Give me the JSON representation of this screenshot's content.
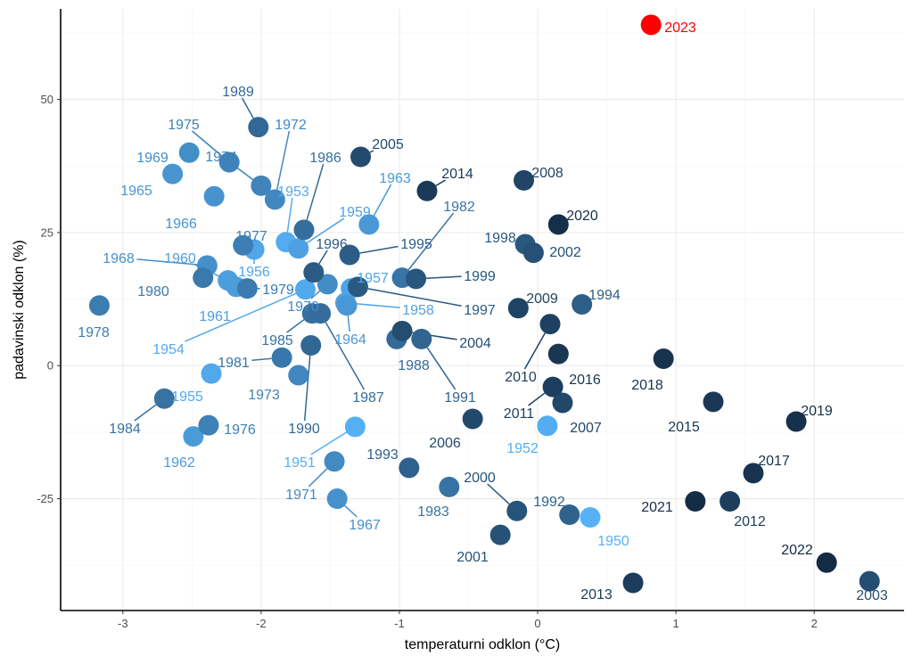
{
  "chart_data": {
    "type": "scatter",
    "xlabel": "temperaturni odklon (°C)",
    "ylabel": "padavinski odklon (%)",
    "xlim": [
      -3.45,
      2.65
    ],
    "ylim": [
      -46,
      67
    ],
    "x_ticks": [
      -3,
      -2,
      -1,
      0,
      1,
      2
    ],
    "x_tick_labels": [
      "-3",
      "-2",
      "-1",
      "0",
      "1",
      "2"
    ],
    "y_ticks": [
      -25,
      0,
      25,
      50
    ],
    "y_tick_labels": [
      "-25",
      "0",
      "25",
      "50"
    ],
    "grid": true,
    "legend": "none",
    "color_scale": {
      "low": "#56b1f7",
      "high": "#132b43",
      "from_year": 1950,
      "to_year": 2022
    },
    "highlight": {
      "year": "2023",
      "color": "#ff0000"
    },
    "points": [
      {
        "year": "1950",
        "x": 0.38,
        "y": -28.5
      },
      {
        "year": "1951",
        "x": -1.32,
        "y": -11.5
      },
      {
        "year": "1952",
        "x": 0.07,
        "y": -11.3
      },
      {
        "year": "1953",
        "x": -1.82,
        "y": 23.2
      },
      {
        "year": "1954",
        "x": -1.68,
        "y": 14.3
      },
      {
        "year": "1955",
        "x": -2.36,
        "y": -1.5
      },
      {
        "year": "1956",
        "x": -2.05,
        "y": 21.8
      },
      {
        "year": "1957",
        "x": -1.35,
        "y": 14.5
      },
      {
        "year": "1958",
        "x": -1.39,
        "y": 11.8
      },
      {
        "year": "1959",
        "x": -1.73,
        "y": 22.0
      },
      {
        "year": "1960",
        "x": -2.24,
        "y": 16.0
      },
      {
        "year": "1961",
        "x": -2.18,
        "y": 14.8
      },
      {
        "year": "1962",
        "x": -2.49,
        "y": -13.3
      },
      {
        "year": "1963",
        "x": -1.22,
        "y": 26.5
      },
      {
        "year": "1964",
        "x": -1.38,
        "y": 11.3
      },
      {
        "year": "1965",
        "x": -2.64,
        "y": 36.0
      },
      {
        "year": "1966",
        "x": -2.34,
        "y": 31.8
      },
      {
        "year": "1967",
        "x": -1.45,
        "y": -25.0
      },
      {
        "year": "1968",
        "x": -2.39,
        "y": 18.8
      },
      {
        "year": "1969",
        "x": -2.52,
        "y": 40.0
      },
      {
        "year": "1970",
        "x": -1.52,
        "y": 15.3
      },
      {
        "year": "1971",
        "x": -1.47,
        "y": -18.0
      },
      {
        "year": "1972",
        "x": -1.9,
        "y": 31.2
      },
      {
        "year": "1973",
        "x": -1.73,
        "y": -1.8
      },
      {
        "year": "1974",
        "x": -2.0,
        "y": 33.8
      },
      {
        "year": "1975",
        "x": -2.23,
        "y": 38.2
      },
      {
        "year": "1976",
        "x": -2.38,
        "y": -11.2
      },
      {
        "year": "1977",
        "x": -2.13,
        "y": 22.6
      },
      {
        "year": "1978",
        "x": -3.17,
        "y": 11.3
      },
      {
        "year": "1979",
        "x": -2.1,
        "y": 14.5
      },
      {
        "year": "1980",
        "x": -2.42,
        "y": 16.5
      },
      {
        "year": "1981",
        "x": -1.85,
        "y": 1.5
      },
      {
        "year": "1982",
        "x": -0.98,
        "y": 16.5
      },
      {
        "year": "1983",
        "x": -0.64,
        "y": -22.8
      },
      {
        "year": "1984",
        "x": -2.7,
        "y": -6.2
      },
      {
        "year": "1985",
        "x": -1.63,
        "y": 9.8
      },
      {
        "year": "1986",
        "x": -1.69,
        "y": 25.5
      },
      {
        "year": "1987",
        "x": -1.57,
        "y": 9.8
      },
      {
        "year": "1988",
        "x": -1.02,
        "y": 5.0
      },
      {
        "year": "1989",
        "x": -2.02,
        "y": 44.8
      },
      {
        "year": "1990",
        "x": -1.64,
        "y": 3.8
      },
      {
        "year": "1991",
        "x": -0.84,
        "y": 5.0
      },
      {
        "year": "1992",
        "x": 0.23,
        "y": -28.0
      },
      {
        "year": "1993",
        "x": -0.93,
        "y": -19.2
      },
      {
        "year": "1994",
        "x": 0.32,
        "y": 11.5
      },
      {
        "year": "1995",
        "x": -1.36,
        "y": 20.8
      },
      {
        "year": "1996",
        "x": -1.62,
        "y": 17.5
      },
      {
        "year": "1997",
        "x": -1.3,
        "y": 14.8
      },
      {
        "year": "1998",
        "x": -0.09,
        "y": 22.8
      },
      {
        "year": "1999",
        "x": -0.88,
        "y": 16.3
      },
      {
        "year": "2000",
        "x": -0.15,
        "y": -27.3
      },
      {
        "year": "2001",
        "x": -0.27,
        "y": -31.8
      },
      {
        "year": "2002",
        "x": -0.03,
        "y": 21.2
      },
      {
        "year": "2003",
        "x": 2.4,
        "y": -40.5
      },
      {
        "year": "2004",
        "x": -0.98,
        "y": 6.5
      },
      {
        "year": "2005",
        "x": -1.28,
        "y": 39.2
      },
      {
        "year": "2006",
        "x": -0.47,
        "y": -10.0
      },
      {
        "year": "2007",
        "x": 0.18,
        "y": -7.0
      },
      {
        "year": "2008",
        "x": -0.1,
        "y": 34.8
      },
      {
        "year": "2009",
        "x": -0.14,
        "y": 10.8
      },
      {
        "year": "2010",
        "x": 0.09,
        "y": 7.8
      },
      {
        "year": "2011",
        "x": 0.11,
        "y": -4.0
      },
      {
        "year": "2012",
        "x": 1.39,
        "y": -25.5
      },
      {
        "year": "2013",
        "x": 0.69,
        "y": -40.8
      },
      {
        "year": "2014",
        "x": -0.8,
        "y": 32.8
      },
      {
        "year": "2015",
        "x": 1.27,
        "y": -6.8
      },
      {
        "year": "2016",
        "x": 0.15,
        "y": 2.2
      },
      {
        "year": "2017",
        "x": 1.56,
        "y": -20.2
      },
      {
        "year": "2018",
        "x": 0.91,
        "y": 1.3
      },
      {
        "year": "2019",
        "x": 1.87,
        "y": -10.5
      },
      {
        "year": "2020",
        "x": 0.15,
        "y": 26.5
      },
      {
        "year": "2021",
        "x": 1.14,
        "y": -25.5
      },
      {
        "year": "2022",
        "x": 2.09,
        "y": -37.0
      },
      {
        "year": "2023",
        "x": 0.82,
        "y": 64.0
      }
    ]
  }
}
